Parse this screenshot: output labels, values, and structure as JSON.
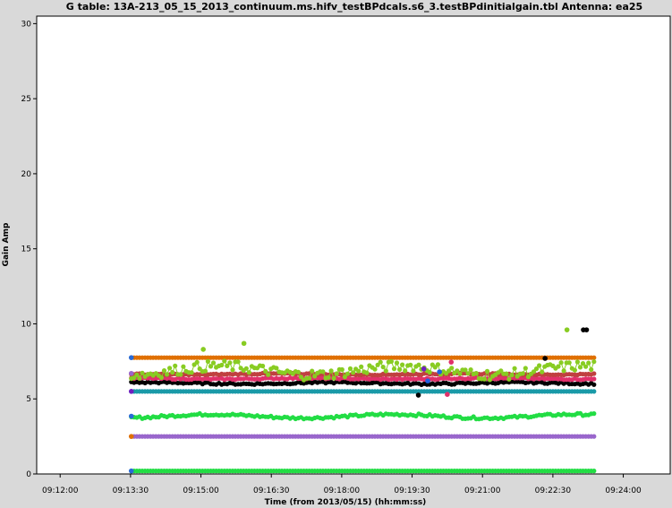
{
  "chart_data": {
    "type": "scatter",
    "title": "G table: 13A-213_05_15_2013_continuum.ms.hifv_testBPdcals.s6_3.testBPdinitialgain.tbl   Antenna: ea25",
    "xlabel": "Time (from 2013/05/15) (hh:mm:ss)",
    "ylabel": "Gain Amp",
    "x_unit": "seconds since 09:00:00",
    "xlim": [
      690,
      1500
    ],
    "ylim": [
      0,
      30.5
    ],
    "x_ticks": [
      {
        "t": 720,
        "label": "09:12:00"
      },
      {
        "t": 810,
        "label": "09:13:30"
      },
      {
        "t": 900,
        "label": "09:15:00"
      },
      {
        "t": 990,
        "label": "09:16:30"
      },
      {
        "t": 1080,
        "label": "09:18:00"
      },
      {
        "t": 1170,
        "label": "09:19:30"
      },
      {
        "t": 1260,
        "label": "09:21:00"
      },
      {
        "t": 1350,
        "label": "09:22:30"
      },
      {
        "t": 1440,
        "label": "09:24:00"
      }
    ],
    "y_ticks": [
      0,
      5,
      10,
      15,
      20,
      25,
      30
    ],
    "time_range": [
      811,
      1403
    ],
    "grid": false,
    "series": [
      {
        "color": "#22dd44",
        "base": 0.2,
        "noise": 0.0,
        "wave": 0
      },
      {
        "color": "#9966cc",
        "base": 2.5,
        "noise": 0.0,
        "wave": 0
      },
      {
        "color": "#22dd44",
        "base": 3.85,
        "noise": 0.08,
        "wave": 0.12
      },
      {
        "color": "#1a9aa8",
        "base": 5.5,
        "noise": 0.0,
        "wave": 0
      },
      {
        "color": "#000000",
        "base": 6.05,
        "noise": 0.06,
        "wave": 0.05
      },
      {
        "color": "#e0306a",
        "base": 6.35,
        "noise": 0.05,
        "wave": 0.03
      },
      {
        "color": "#c04040",
        "base": 6.65,
        "noise": 0.04,
        "wave": 0.03
      },
      {
        "color": "#e07000",
        "base": 7.75,
        "noise": 0.0,
        "wave": 0
      },
      {
        "color": "#88cc22",
        "base": 6.9,
        "noise": 0.35,
        "wave": 0.3
      }
    ],
    "spikes": [
      {
        "color": "#88cc22",
        "t": 1368,
        "v": 9.6
      },
      {
        "color": "#88cc22",
        "t": 903,
        "v": 8.3
      },
      {
        "color": "#88cc22",
        "t": 955,
        "v": 8.7
      },
      {
        "color": "#000000",
        "t": 1389,
        "v": 9.6
      },
      {
        "color": "#000000",
        "t": 1393,
        "v": 9.6
      },
      {
        "color": "#000000",
        "t": 1340,
        "v": 7.7
      },
      {
        "color": "#000000",
        "t": 1178,
        "v": 5.25
      },
      {
        "color": "#e0306a",
        "t": 1220,
        "v": 7.45
      },
      {
        "color": "#e0306a",
        "t": 1215,
        "v": 5.3
      },
      {
        "color": "#7020c0",
        "t": 1185,
        "v": 7.0
      },
      {
        "color": "#2060e0",
        "t": 1190,
        "v": 6.2
      },
      {
        "color": "#2060e0",
        "t": 1205,
        "v": 6.8
      }
    ],
    "start_markers": [
      {
        "color": "#2a6bd6",
        "v": 7.75
      },
      {
        "color": "#2a6bd6",
        "v": 3.85
      },
      {
        "color": "#2a6bd6",
        "v": 0.2
      },
      {
        "color": "#9966cc",
        "v": 6.7
      },
      {
        "color": "#e07000",
        "v": 2.5
      },
      {
        "color": "#7020c0",
        "v": 5.5
      }
    ]
  }
}
